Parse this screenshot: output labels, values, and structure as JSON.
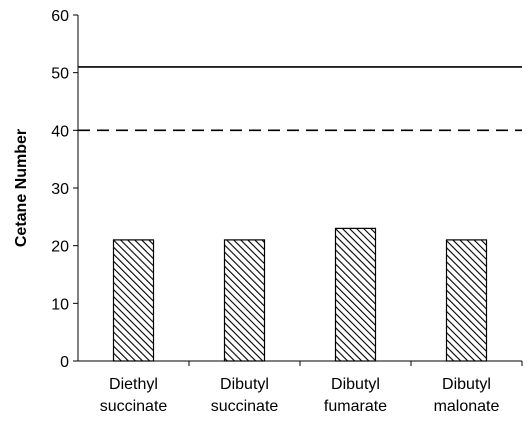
{
  "chart_data": {
    "type": "bar",
    "title": "",
    "xlabel": "",
    "ylabel": "Cetane Number",
    "ylim": [
      0,
      60
    ],
    "yticks": [
      0,
      10,
      20,
      30,
      40,
      50,
      60
    ],
    "categories": [
      [
        "Diethyl",
        "succinate"
      ],
      [
        "Dibutyl",
        "succinate"
      ],
      [
        "Dibutyl",
        "fumarate"
      ],
      [
        "Dibutyl",
        "malonate"
      ]
    ],
    "values": [
      21,
      21,
      23,
      21
    ],
    "bar_fill": "diagonal-hatch",
    "reference_lines": [
      {
        "value": 51,
        "style": "solid"
      },
      {
        "value": 40,
        "style": "dashed"
      }
    ],
    "grid": false,
    "legend": "none",
    "colors": {
      "bar_stroke": "#000000",
      "hatch": "#000000",
      "line": "#000000"
    }
  }
}
